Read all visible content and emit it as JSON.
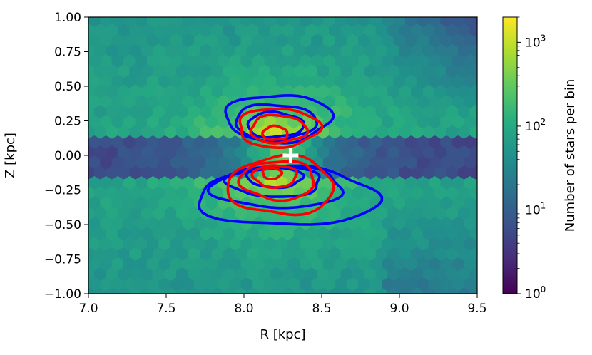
{
  "chart_data": {
    "type": "heatmap",
    "subtype": "hexbin-with-contours",
    "title": "",
    "xlabel": "R [kpc]",
    "ylabel": "Z [kpc]",
    "xlim": [
      7.0,
      9.5
    ],
    "ylim": [
      -1.0,
      1.0
    ],
    "x_ticks": [
      7.0,
      7.5,
      8.0,
      8.5,
      9.0,
      9.5
    ],
    "x_tick_labels": [
      "7.0",
      "7.5",
      "8.0",
      "8.5",
      "9.0",
      "9.5"
    ],
    "y_ticks": [
      1.0,
      0.75,
      0.5,
      0.25,
      0.0,
      -0.25,
      -0.5,
      -0.75,
      -1.0
    ],
    "y_tick_labels": [
      "1.00",
      "0.75",
      "0.50",
      "0.25",
      "0.00",
      "−0.25",
      "−0.50",
      "−0.75",
      "−1.00"
    ],
    "grid": false,
    "colormap": "viridis",
    "colorbar": {
      "label": "Number of stars per bin",
      "scale": "log",
      "range": [
        1,
        2000
      ],
      "ticks": [
        {
          "base": "10",
          "exp": "0",
          "value": 1
        },
        {
          "base": "10",
          "exp": "1",
          "value": 10
        },
        {
          "base": "10",
          "exp": "2",
          "value": 100
        },
        {
          "base": "10",
          "exp": "3",
          "value": 1000
        }
      ]
    },
    "sun_marker": {
      "R": 8.3,
      "Z": 0.0,
      "symbol": "plus",
      "color": "#ffffff"
    },
    "contours": [
      {
        "color": "#0000ff",
        "levels": [
          {
            "Rc": 8.22,
            "Zc": 0.27,
            "dR": 0.34,
            "dZ": 0.17
          },
          {
            "Rc": 8.2,
            "Zc": 0.24,
            "dR": 0.26,
            "dZ": 0.13
          },
          {
            "Rc": 8.2,
            "Zc": 0.22,
            "dR": 0.18,
            "dZ": 0.09
          },
          {
            "Rc": 8.28,
            "Zc": -0.3,
            "dR": 0.58,
            "dZ": 0.21
          },
          {
            "Rc": 8.22,
            "Zc": -0.23,
            "dR": 0.42,
            "dZ": 0.15
          },
          {
            "Rc": 8.2,
            "Zc": -0.19,
            "dR": 0.3,
            "dZ": 0.11
          },
          {
            "Rc": 8.2,
            "Zc": -0.16,
            "dR": 0.18,
            "dZ": 0.07
          }
        ]
      },
      {
        "color": "#ff0000",
        "levels": [
          {
            "Rc": 8.22,
            "Zc": 0.2,
            "dR": 0.26,
            "dZ": 0.14
          },
          {
            "Rc": 8.22,
            "Zc": 0.19,
            "dR": 0.18,
            "dZ": 0.1
          },
          {
            "Rc": 8.2,
            "Zc": 0.16,
            "dR": 0.08,
            "dZ": 0.05
          },
          {
            "Rc": 8.24,
            "Zc": -0.22,
            "dR": 0.34,
            "dZ": 0.21
          },
          {
            "Rc": 8.22,
            "Zc": -0.18,
            "dR": 0.24,
            "dZ": 0.14
          },
          {
            "Rc": 8.2,
            "Zc": -0.15,
            "dR": 0.14,
            "dZ": 0.08
          },
          {
            "Rc": 8.18,
            "Zc": -0.13,
            "dR": 0.06,
            "dZ": 0.04
          }
        ]
      }
    ]
  }
}
